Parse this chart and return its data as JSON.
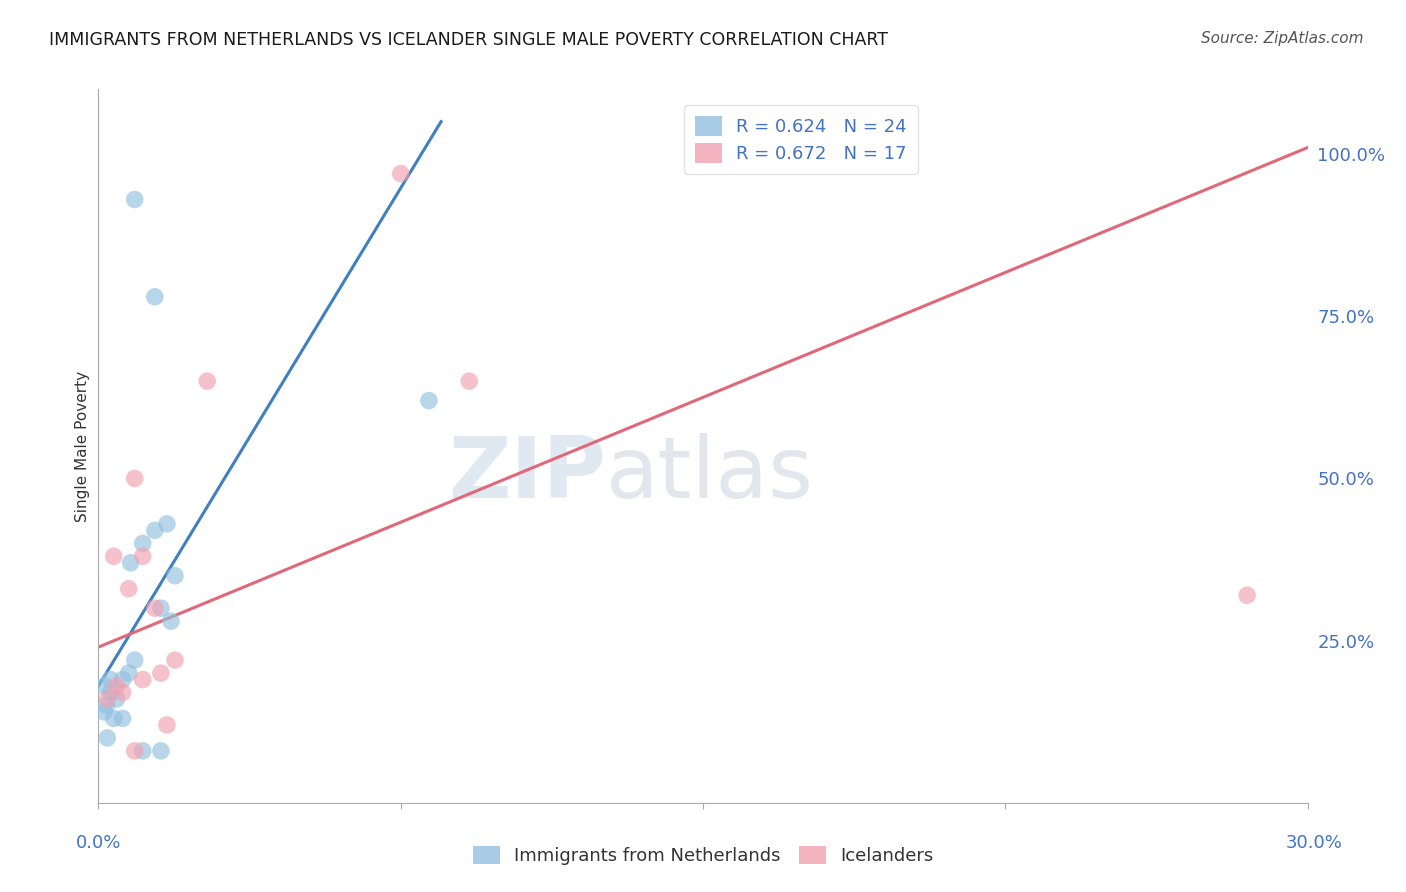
{
  "title": "IMMIGRANTS FROM NETHERLANDS VS ICELANDER SINGLE MALE POVERTY CORRELATION CHART",
  "source": "Source: ZipAtlas.com",
  "ylabel": "Single Male Poverty",
  "xlim": [
    0.0,
    30.0
  ],
  "ylim": [
    0.0,
    110.0
  ],
  "yticks_right": [
    25.0,
    50.0,
    75.0,
    100.0
  ],
  "ytick_labels_right": [
    "25.0%",
    "50.0%",
    "75.0%",
    "100.0%"
  ],
  "legend_entries": [
    {
      "label": "R = 0.624   N = 24",
      "color": "#a8c8e8"
    },
    {
      "label": "R = 0.672   N = 17",
      "color": "#f0b0be"
    }
  ],
  "blue_scatter_x": [
    0.9,
    8.2,
    1.4,
    0.8,
    0.3,
    1.1,
    1.4,
    1.7,
    0.15,
    0.3,
    0.2,
    0.75,
    0.9,
    0.45,
    0.6,
    1.9,
    1.55,
    0.15,
    0.38,
    0.6,
    1.55,
    1.1,
    0.22,
    1.8
  ],
  "blue_scatter_y": [
    93.0,
    62.0,
    78.0,
    37.0,
    19.0,
    40.0,
    42.0,
    43.0,
    18.0,
    17.0,
    15.0,
    20.0,
    22.0,
    16.0,
    19.0,
    35.0,
    30.0,
    14.0,
    13.0,
    13.0,
    8.0,
    8.0,
    10.0,
    28.0
  ],
  "pink_scatter_x": [
    7.5,
    9.2,
    2.7,
    0.9,
    0.38,
    1.1,
    0.75,
    1.4,
    0.22,
    0.45,
    0.6,
    1.55,
    1.1,
    1.9,
    0.9,
    1.7,
    28.5
  ],
  "pink_scatter_y": [
    97.0,
    65.0,
    65.0,
    50.0,
    38.0,
    38.0,
    33.0,
    30.0,
    16.0,
    18.0,
    17.0,
    20.0,
    19.0,
    22.0,
    8.0,
    12.0,
    32.0
  ],
  "blue_line_x": [
    0.0,
    8.5
  ],
  "blue_line_y": [
    18.0,
    105.0
  ],
  "pink_line_x": [
    0.0,
    30.0
  ],
  "pink_line_y": [
    24.0,
    101.0
  ],
  "scatter_size": 160,
  "blue_color": "#92c0e0",
  "pink_color": "#f0a0b0",
  "blue_line_color": "#4080c0",
  "pink_line_color": "#e06878",
  "watermark_zip": "ZIP",
  "watermark_atlas": "atlas",
  "background_color": "#ffffff",
  "grid_color": "#d0d0d0",
  "xticks": [
    0.0,
    7.5,
    15.0,
    22.5,
    30.0
  ],
  "title_fontsize": 12.5,
  "source_fontsize": 11,
  "tick_label_fontsize": 13
}
